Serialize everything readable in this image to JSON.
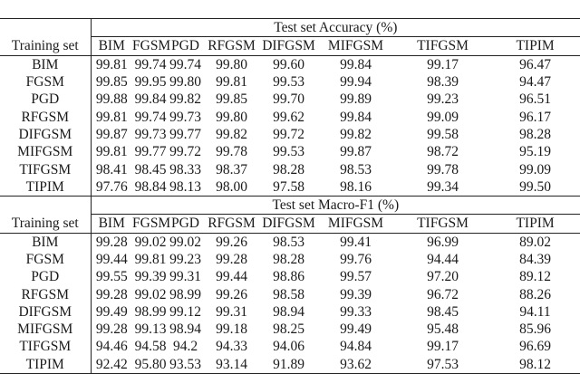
{
  "row_header_label": "Training set",
  "columns": [
    "BIM",
    "FGSM",
    "PGD",
    "RFGSM",
    "DIFGSM",
    "MIFGSM",
    "TIFGSM",
    "TIPIM"
  ],
  "sections": [
    {
      "title": "Test set Accuracy (%)",
      "rows": [
        {
          "label": "BIM",
          "values": [
            "99.81",
            "99.74",
            "99.74",
            "99.80",
            "99.60",
            "99.84",
            "99.17",
            "96.47"
          ]
        },
        {
          "label": "FGSM",
          "values": [
            "99.85",
            "99.95",
            "99.80",
            "99.81",
            "99.53",
            "99.94",
            "98.39",
            "94.47"
          ]
        },
        {
          "label": "PGD",
          "values": [
            "99.88",
            "99.84",
            "99.82",
            "99.85",
            "99.70",
            "99.89",
            "99.23",
            "96.51"
          ]
        },
        {
          "label": "RFGSM",
          "values": [
            "99.81",
            "99.74",
            "99.73",
            "99.80",
            "99.62",
            "99.84",
            "99.09",
            "96.17"
          ]
        },
        {
          "label": "DIFGSM",
          "values": [
            "99.87",
            "99.73",
            "99.77",
            "99.82",
            "99.72",
            "99.82",
            "99.58",
            "98.28"
          ]
        },
        {
          "label": "MIFGSM",
          "values": [
            "99.81",
            "99.77",
            "99.72",
            "99.78",
            "99.53",
            "99.87",
            "98.72",
            "95.19"
          ]
        },
        {
          "label": "TIFGSM",
          "values": [
            "98.41",
            "98.45",
            "98.33",
            "98.37",
            "98.28",
            "98.53",
            "99.78",
            "99.09"
          ]
        },
        {
          "label": "TIPIM",
          "values": [
            "97.76",
            "98.84",
            "98.13",
            "98.00",
            "97.58",
            "98.16",
            "99.34",
            "99.50"
          ]
        }
      ]
    },
    {
      "title": "Test set Macro-F1 (%)",
      "rows": [
        {
          "label": "BIM",
          "values": [
            "99.28",
            "99.02",
            "99.02",
            "99.26",
            "98.53",
            "99.41",
            "96.99",
            "89.02"
          ]
        },
        {
          "label": "FGSM",
          "values": [
            "99.44",
            "99.81",
            "99.23",
            "99.28",
            "98.28",
            "99.76",
            "94.44",
            "84.39"
          ]
        },
        {
          "label": "PGD",
          "values": [
            "99.55",
            "99.39",
            "99.31",
            "99.44",
            "98.86",
            "99.57",
            "97.20",
            "89.12"
          ]
        },
        {
          "label": "RFGSM",
          "values": [
            "99.28",
            "99.02",
            "98.99",
            "99.26",
            "98.58",
            "99.39",
            "96.72",
            "88.26"
          ]
        },
        {
          "label": "DIFGSM",
          "values": [
            "99.49",
            "98.99",
            "99.12",
            "99.31",
            "98.94",
            "99.33",
            "98.45",
            "94.11"
          ]
        },
        {
          "label": "MIFGSM",
          "values": [
            "99.28",
            "99.13",
            "98.94",
            "99.18",
            "98.25",
            "99.49",
            "95.48",
            "85.96"
          ]
        },
        {
          "label": "TIFGSM",
          "values": [
            "94.46",
            "94.58",
            "94.2",
            "94.33",
            "94.06",
            "94.84",
            "99.17",
            "96.69"
          ]
        },
        {
          "label": "TIPIM",
          "values": [
            "92.42",
            "95.80",
            "93.53",
            "93.14",
            "91.89",
            "93.62",
            "97.53",
            "98.12"
          ]
        }
      ]
    }
  ]
}
